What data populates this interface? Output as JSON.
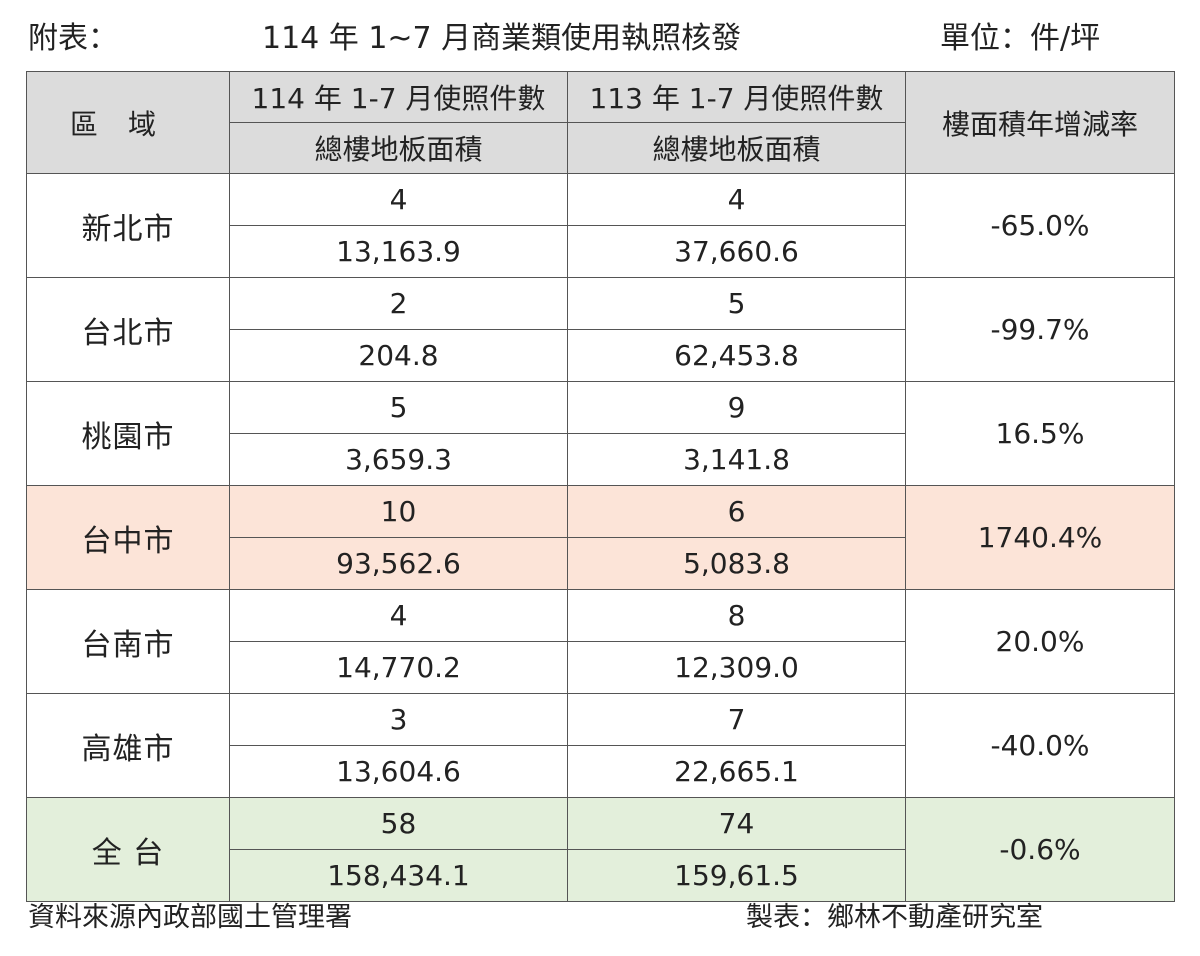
{
  "header": {
    "label": "附表：",
    "title": "114 年 1~7 月商業類使用執照核發",
    "unit": "單位：件/坪"
  },
  "table": {
    "columns": {
      "region": "區域",
      "y114": "114 年 1-7 月使照件數",
      "y113": "113 年 1-7 月使照件數",
      "floor_area_114": "總樓地板面積",
      "floor_area_113": "總樓地板面積",
      "rate": "樓面積年增減率"
    },
    "rows": [
      {
        "region": "新北市",
        "count_114": "4",
        "area_114": "13,163.9",
        "count_113": "4",
        "area_113": "37,660.6",
        "rate": "-65.0%"
      },
      {
        "region": "台北市",
        "count_114": "2",
        "area_114": "204.8",
        "count_113": "5",
        "area_113": "62,453.8",
        "rate": "-99.7%"
      },
      {
        "region": "桃園市",
        "count_114": "5",
        "area_114": "3,659.3",
        "count_113": "9",
        "area_113": "3,141.8",
        "rate": "16.5%"
      },
      {
        "region": "台中市",
        "count_114": "10",
        "area_114": "93,562.6",
        "count_113": "6",
        "area_113": "5,083.8",
        "rate": "1740.4%"
      },
      {
        "region": "台南市",
        "count_114": "4",
        "area_114": "14,770.2",
        "count_113": "8",
        "area_113": "12,309.0",
        "rate": "20.0%"
      },
      {
        "region": "高雄市",
        "count_114": "3",
        "area_114": "13,604.6",
        "count_113": "7",
        "area_113": "22,665.1",
        "rate": "-40.0%"
      },
      {
        "region": "全 台",
        "count_114": "58",
        "area_114": "158,434.1",
        "count_113": "74",
        "area_113": "159,61.5",
        "rate": "-0.6%"
      }
    ]
  },
  "footer": {
    "source": "資料來源內政部國土管理署",
    "maker": "製表：鄉林不動產研究室"
  },
  "colors": {
    "header_bg": "#dcdcdc",
    "highlight_taichung": "#fce4d8",
    "highlight_total": "#e3efdb",
    "border": "#555555"
  }
}
